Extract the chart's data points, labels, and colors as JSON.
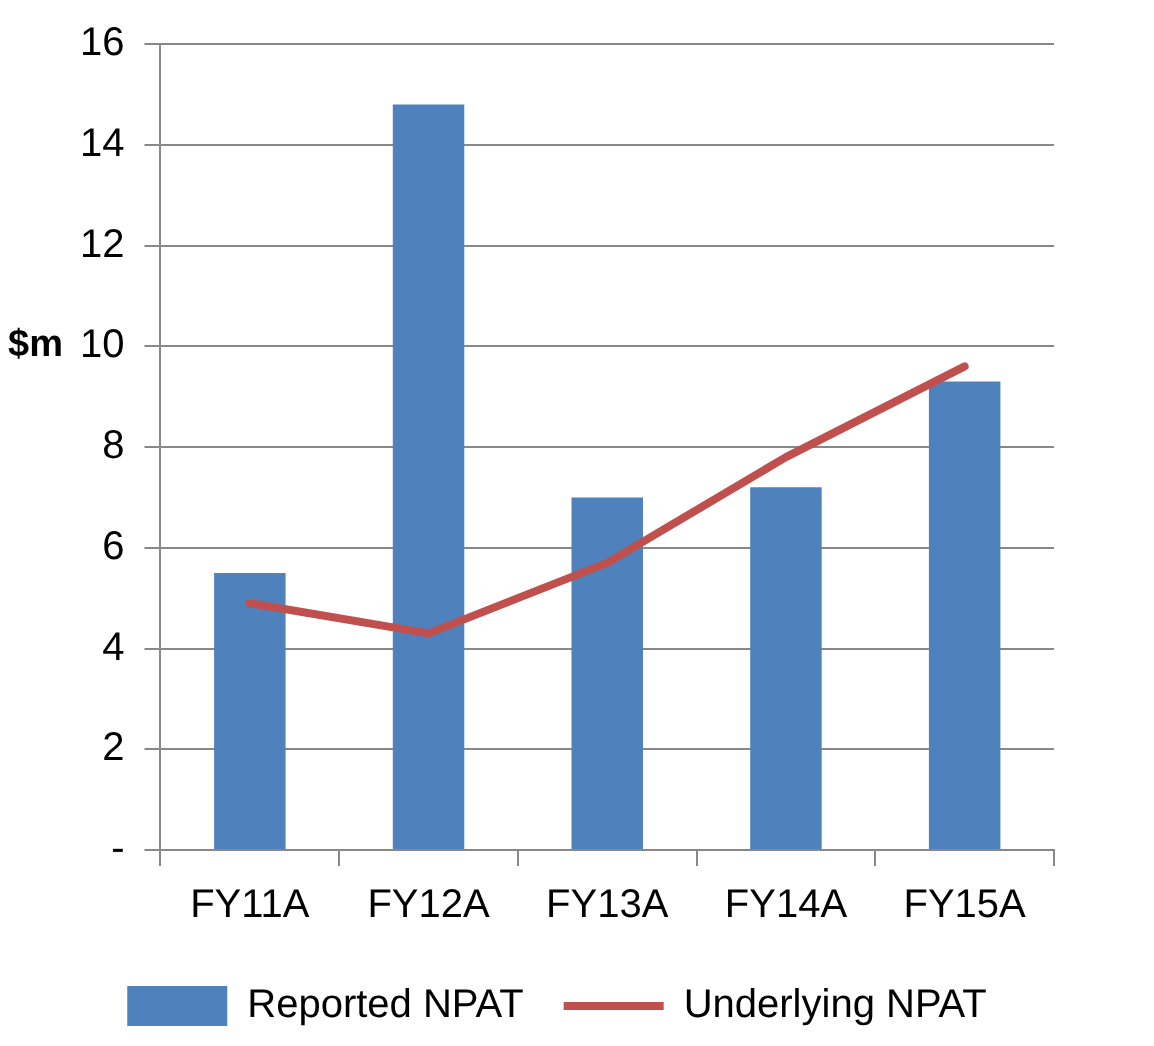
{
  "chart_data": {
    "type": "bar",
    "ylabel": "$m",
    "categories": [
      "FY11A",
      "FY12A",
      "FY13A",
      "FY14A",
      "FY15A"
    ],
    "series": [
      {
        "name": "Reported NPAT",
        "color": "#4f81bd",
        "values": [
          5.5,
          14.8,
          7.0,
          7.2,
          9.3
        ]
      },
      {
        "name": "Underlying NPAT",
        "type": "line",
        "color": "#c0504d",
        "values": [
          4.9,
          4.3,
          5.7,
          7.8,
          9.6
        ]
      }
    ],
    "ylim": [
      0,
      16
    ],
    "yticks": [
      {
        "value": 0,
        "label": "-"
      },
      2,
      4,
      6,
      8,
      10,
      12,
      14,
      16
    ],
    "grid": "y",
    "legend": "bottom",
    "marker": "none"
  }
}
